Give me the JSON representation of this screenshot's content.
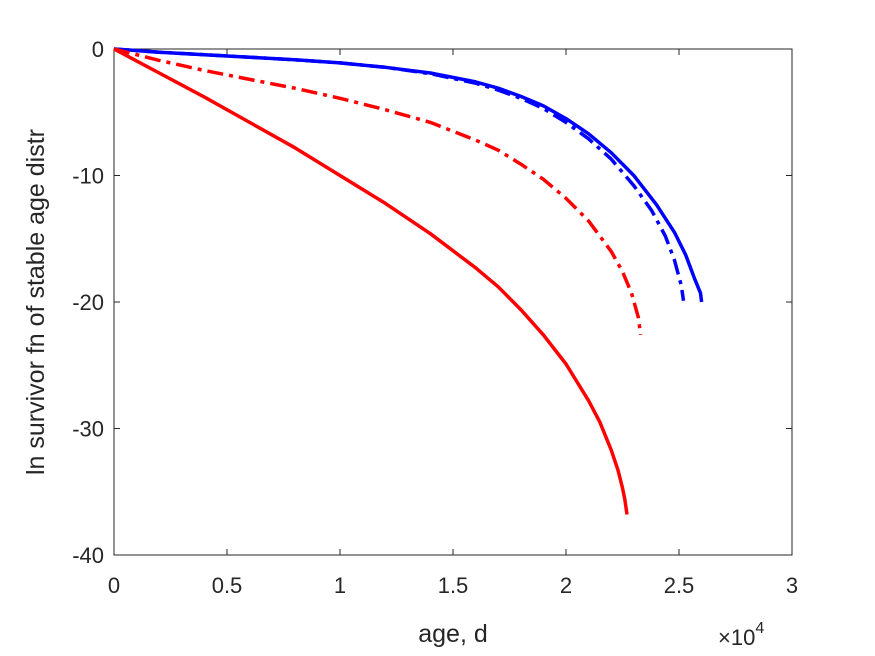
{
  "chart_data": {
    "type": "line",
    "title": "",
    "xlabel": "age, d",
    "ylabel": "ln survivor fn of stable age distr",
    "x_multiplier_label": {
      "base": "×10",
      "exponent": "4"
    },
    "xlim": [
      0,
      30000
    ],
    "ylim": [
      -40,
      0
    ],
    "x_ticks": [
      0,
      5000,
      10000,
      15000,
      20000,
      25000,
      30000
    ],
    "x_tick_labels": [
      "0",
      "0.5",
      "1",
      "1.5",
      "2",
      "2.5",
      "3"
    ],
    "y_ticks": [
      -40,
      -30,
      -20,
      -10,
      0
    ],
    "y_tick_labels": [
      "-40",
      "-30",
      "-20",
      "-10",
      "0"
    ],
    "grid": false,
    "series": [
      {
        "color": "#0000ff",
        "style": "solid",
        "x": [
          0,
          2000,
          4000,
          6000,
          8000,
          10000,
          12000,
          14000,
          16000,
          17000,
          18000,
          19000,
          20000,
          21000,
          22000,
          23000,
          24000,
          24800,
          25300,
          25700,
          25950,
          26000
        ],
        "y": [
          0,
          -0.25,
          -0.45,
          -0.65,
          -0.85,
          -1.1,
          -1.45,
          -1.9,
          -2.6,
          -3.1,
          -3.75,
          -4.5,
          -5.5,
          -6.7,
          -8.2,
          -10.0,
          -12.3,
          -14.5,
          -16.3,
          -18.2,
          -19.3,
          -20.0
        ]
      },
      {
        "color": "#0000ff",
        "style": "dashdot",
        "x": [
          0,
          2000,
          4000,
          6000,
          8000,
          10000,
          12000,
          14000,
          16000,
          17000,
          18000,
          19000,
          20000,
          21000,
          22000,
          23000,
          23800,
          24400,
          24800,
          25100,
          25200
        ],
        "y": [
          0,
          -0.25,
          -0.45,
          -0.65,
          -0.85,
          -1.1,
          -1.45,
          -1.95,
          -2.7,
          -3.25,
          -3.9,
          -4.7,
          -5.8,
          -7.1,
          -8.7,
          -10.8,
          -12.8,
          -14.8,
          -16.7,
          -18.7,
          -19.9
        ]
      },
      {
        "color": "#ff0000",
        "style": "dashdot",
        "x": [
          0,
          2000,
          4000,
          6000,
          8000,
          10000,
          12000,
          14000,
          16000,
          17000,
          18000,
          19000,
          20000,
          21000,
          22000,
          22500,
          22900,
          23200,
          23300
        ],
        "y": [
          0,
          -0.9,
          -1.7,
          -2.4,
          -3.1,
          -3.9,
          -4.8,
          -5.8,
          -7.2,
          -8.0,
          -9.1,
          -10.3,
          -11.8,
          -13.6,
          -16.0,
          -17.6,
          -19.3,
          -21.2,
          -22.6
        ]
      },
      {
        "color": "#ff0000",
        "style": "solid",
        "x": [
          0,
          2000,
          4000,
          6000,
          8000,
          10000,
          12000,
          14000,
          16000,
          17000,
          18000,
          19000,
          20000,
          21000,
          21500,
          22000,
          22300,
          22500,
          22600,
          22700
        ],
        "y": [
          0,
          -1.9,
          -3.8,
          -5.8,
          -7.8,
          -10.0,
          -12.2,
          -14.6,
          -17.3,
          -18.8,
          -20.6,
          -22.6,
          -24.9,
          -27.8,
          -29.5,
          -31.7,
          -33.3,
          -34.7,
          -35.6,
          -36.8
        ]
      }
    ]
  }
}
